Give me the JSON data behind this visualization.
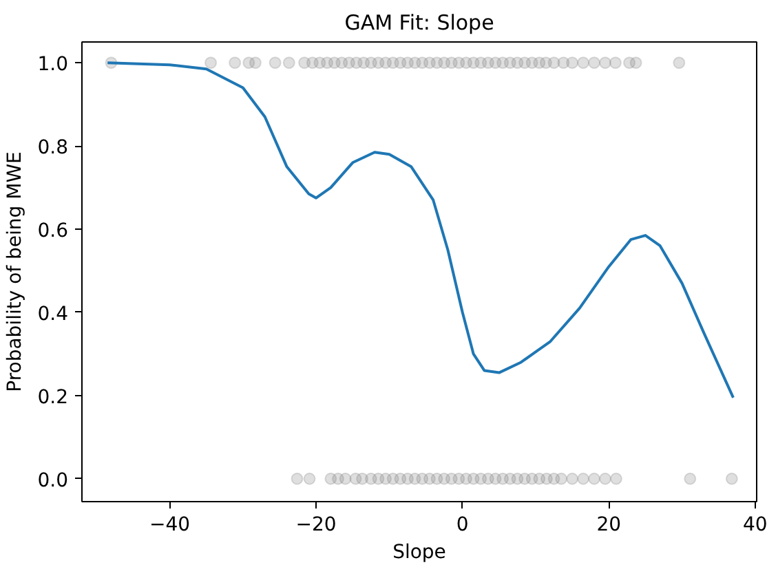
{
  "chart_data": {
    "type": "line",
    "title": "GAM Fit: Slope",
    "xlabel": "Slope",
    "ylabel": "Probability of being MWE",
    "xlim": [
      -52,
      40.2
    ],
    "ylim": [
      -0.055,
      1.05
    ],
    "xticks": [
      -40,
      -20,
      0,
      20,
      40
    ],
    "yticks": [
      {
        "value": 0,
        "label": "0.0"
      },
      {
        "value": 0.2,
        "label": "0.2"
      },
      {
        "value": 0.4,
        "label": "0.4"
      },
      {
        "value": 0.6,
        "label": "0.6"
      },
      {
        "value": 0.8,
        "label": "0.8"
      },
      {
        "value": 1,
        "label": "1.0"
      }
    ],
    "grid": false,
    "series": [
      {
        "type": "scatter",
        "color": "#808080",
        "marker": "circle",
        "x": [
          -48,
          -34.4,
          -31.1,
          -29.2,
          -28.3,
          -25.6,
          -23.7,
          -21.6,
          -20.5,
          -19.5,
          -18.5,
          -17.5,
          -16.5,
          -15.5,
          -14.5,
          -13.5,
          -12.5,
          -11.5,
          -10.5,
          -9.5,
          -8.5,
          -7.5,
          -6.5,
          -5.5,
          -4.5,
          -3.5,
          -2.5,
          -1.5,
          -0.5,
          0.5,
          1.5,
          2.5,
          3.5,
          4.5,
          5.5,
          6.5,
          7.5,
          8.5,
          9.5,
          10.5,
          11.4,
          12.5,
          13.8,
          15,
          16.5,
          18,
          19.5,
          20.9,
          22.8,
          23.7,
          29.6
        ],
        "values": [
          1,
          1,
          1,
          1,
          1,
          1,
          1,
          1,
          1,
          1,
          1,
          1,
          1,
          1,
          1,
          1,
          1,
          1,
          1,
          1,
          1,
          1,
          1,
          1,
          1,
          1,
          1,
          1,
          1,
          1,
          1,
          1,
          1,
          1,
          1,
          1,
          1,
          1,
          1,
          1,
          1,
          1,
          1,
          1,
          1,
          1,
          1,
          1,
          1,
          1,
          1
        ]
      },
      {
        "type": "scatter",
        "color": "#808080",
        "marker": "circle",
        "x": [
          -22.6,
          -20.9,
          -18,
          -17,
          -16,
          -14.6,
          -13.7,
          -12.5,
          -11.5,
          -10.5,
          -9.5,
          -8.5,
          -7.5,
          -6.5,
          -5.5,
          -4.5,
          -3.5,
          -2.5,
          -1.5,
          -0.5,
          0.5,
          1.5,
          2.5,
          3.5,
          4.5,
          5.5,
          6.5,
          7.5,
          8.5,
          9.5,
          10.5,
          11.5,
          12.5,
          13.5,
          15,
          16.5,
          18,
          19.5,
          21,
          31.1,
          36.8
        ],
        "values": [
          0,
          0,
          0,
          0,
          0,
          0,
          0,
          0,
          0,
          0,
          0,
          0,
          0,
          0,
          0,
          0,
          0,
          0,
          0,
          0,
          0,
          0,
          0,
          0,
          0,
          0,
          0,
          0,
          0,
          0,
          0,
          0,
          0,
          0,
          0,
          0,
          0,
          0,
          0,
          0,
          0
        ]
      },
      {
        "color": "#1f77b4",
        "line_style": "solid",
        "x": [
          -48.5,
          -40,
          -35,
          -30,
          -27,
          -24,
          -21,
          -20,
          -18,
          -15,
          -12,
          -10,
          -7,
          -4,
          -2,
          0,
          1.5,
          3,
          5,
          8,
          12,
          16,
          20,
          23,
          25,
          27,
          30,
          33,
          37
        ],
        "values": [
          1.0,
          0.995,
          0.985,
          0.94,
          0.87,
          0.75,
          0.685,
          0.675,
          0.7,
          0.76,
          0.785,
          0.78,
          0.75,
          0.67,
          0.55,
          0.4,
          0.3,
          0.26,
          0.255,
          0.28,
          0.33,
          0.41,
          0.51,
          0.575,
          0.585,
          0.56,
          0.47,
          0.35,
          0.195
        ]
      }
    ]
  }
}
